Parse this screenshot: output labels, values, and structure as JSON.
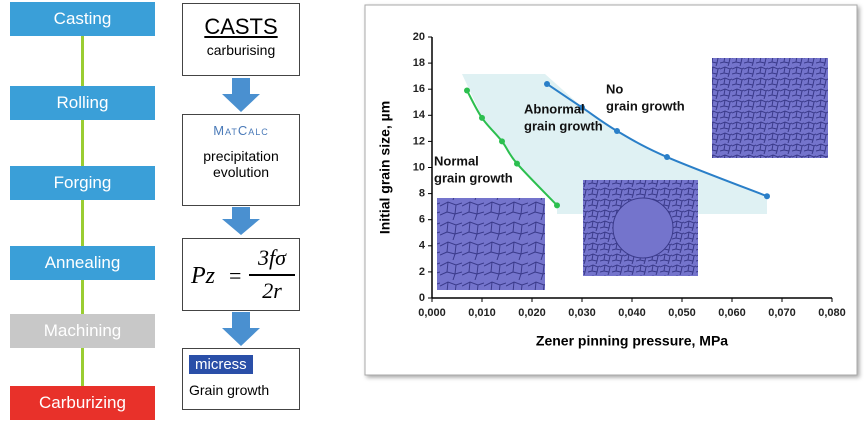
{
  "process_steps": [
    "Casting",
    "Rolling",
    "Forging",
    "Annealing",
    "Machining",
    "Carburizing"
  ],
  "tools": {
    "casts": {
      "title": "CASTS",
      "subtitle": "carburising"
    },
    "matcalc": {
      "logo": "MatCalc",
      "line1": "precipitation",
      "line2": "evolution"
    },
    "formula": {
      "lhs": "Pz",
      "equals": "=",
      "numerator": "3fσ",
      "denominator": "2r"
    },
    "micress": {
      "logo": "micress",
      "label": "Grain growth"
    }
  },
  "chart_data": {
    "type": "line",
    "x_label": "Zener pinning pressure, MPa",
    "y_label": "Initial grain size, µm",
    "xlim": [
      0,
      0.08
    ],
    "ylim": [
      0,
      20
    ],
    "xticks": [
      {
        "value": 0,
        "label": "0,000"
      },
      {
        "value": 0.01,
        "label": "0,010"
      },
      {
        "value": 0.02,
        "label": "0,020"
      },
      {
        "value": 0.03,
        "label": "0,030"
      },
      {
        "value": 0.04,
        "label": "0,040"
      },
      {
        "value": 0.05,
        "label": "0,050"
      },
      {
        "value": 0.06,
        "label": "0,060"
      },
      {
        "value": 0.07,
        "label": "0,070"
      },
      {
        "value": 0.08,
        "label": "0,080"
      }
    ],
    "yticks": [
      0,
      2,
      4,
      6,
      8,
      10,
      12,
      14,
      16,
      18,
      20
    ],
    "series": [
      {
        "color": "#2a7fc8",
        "x": [
          0.023,
          0.03,
          0.037,
          0.047,
          0.067
        ],
        "values": [
          16.4,
          14.6,
          12.8,
          10.8,
          7.8
        ]
      },
      {
        "color": "#2cbf4f",
        "x": [
          0.007,
          0.01,
          0.014,
          0.017,
          0.025
        ],
        "values": [
          15.9,
          13.8,
          12.0,
          10.3,
          7.1
        ]
      }
    ],
    "annotations": [
      [
        "No",
        "grain growth"
      ],
      [
        "Abnormal",
        "grain growth"
      ],
      [
        "Normal",
        "grain growth"
      ]
    ]
  }
}
